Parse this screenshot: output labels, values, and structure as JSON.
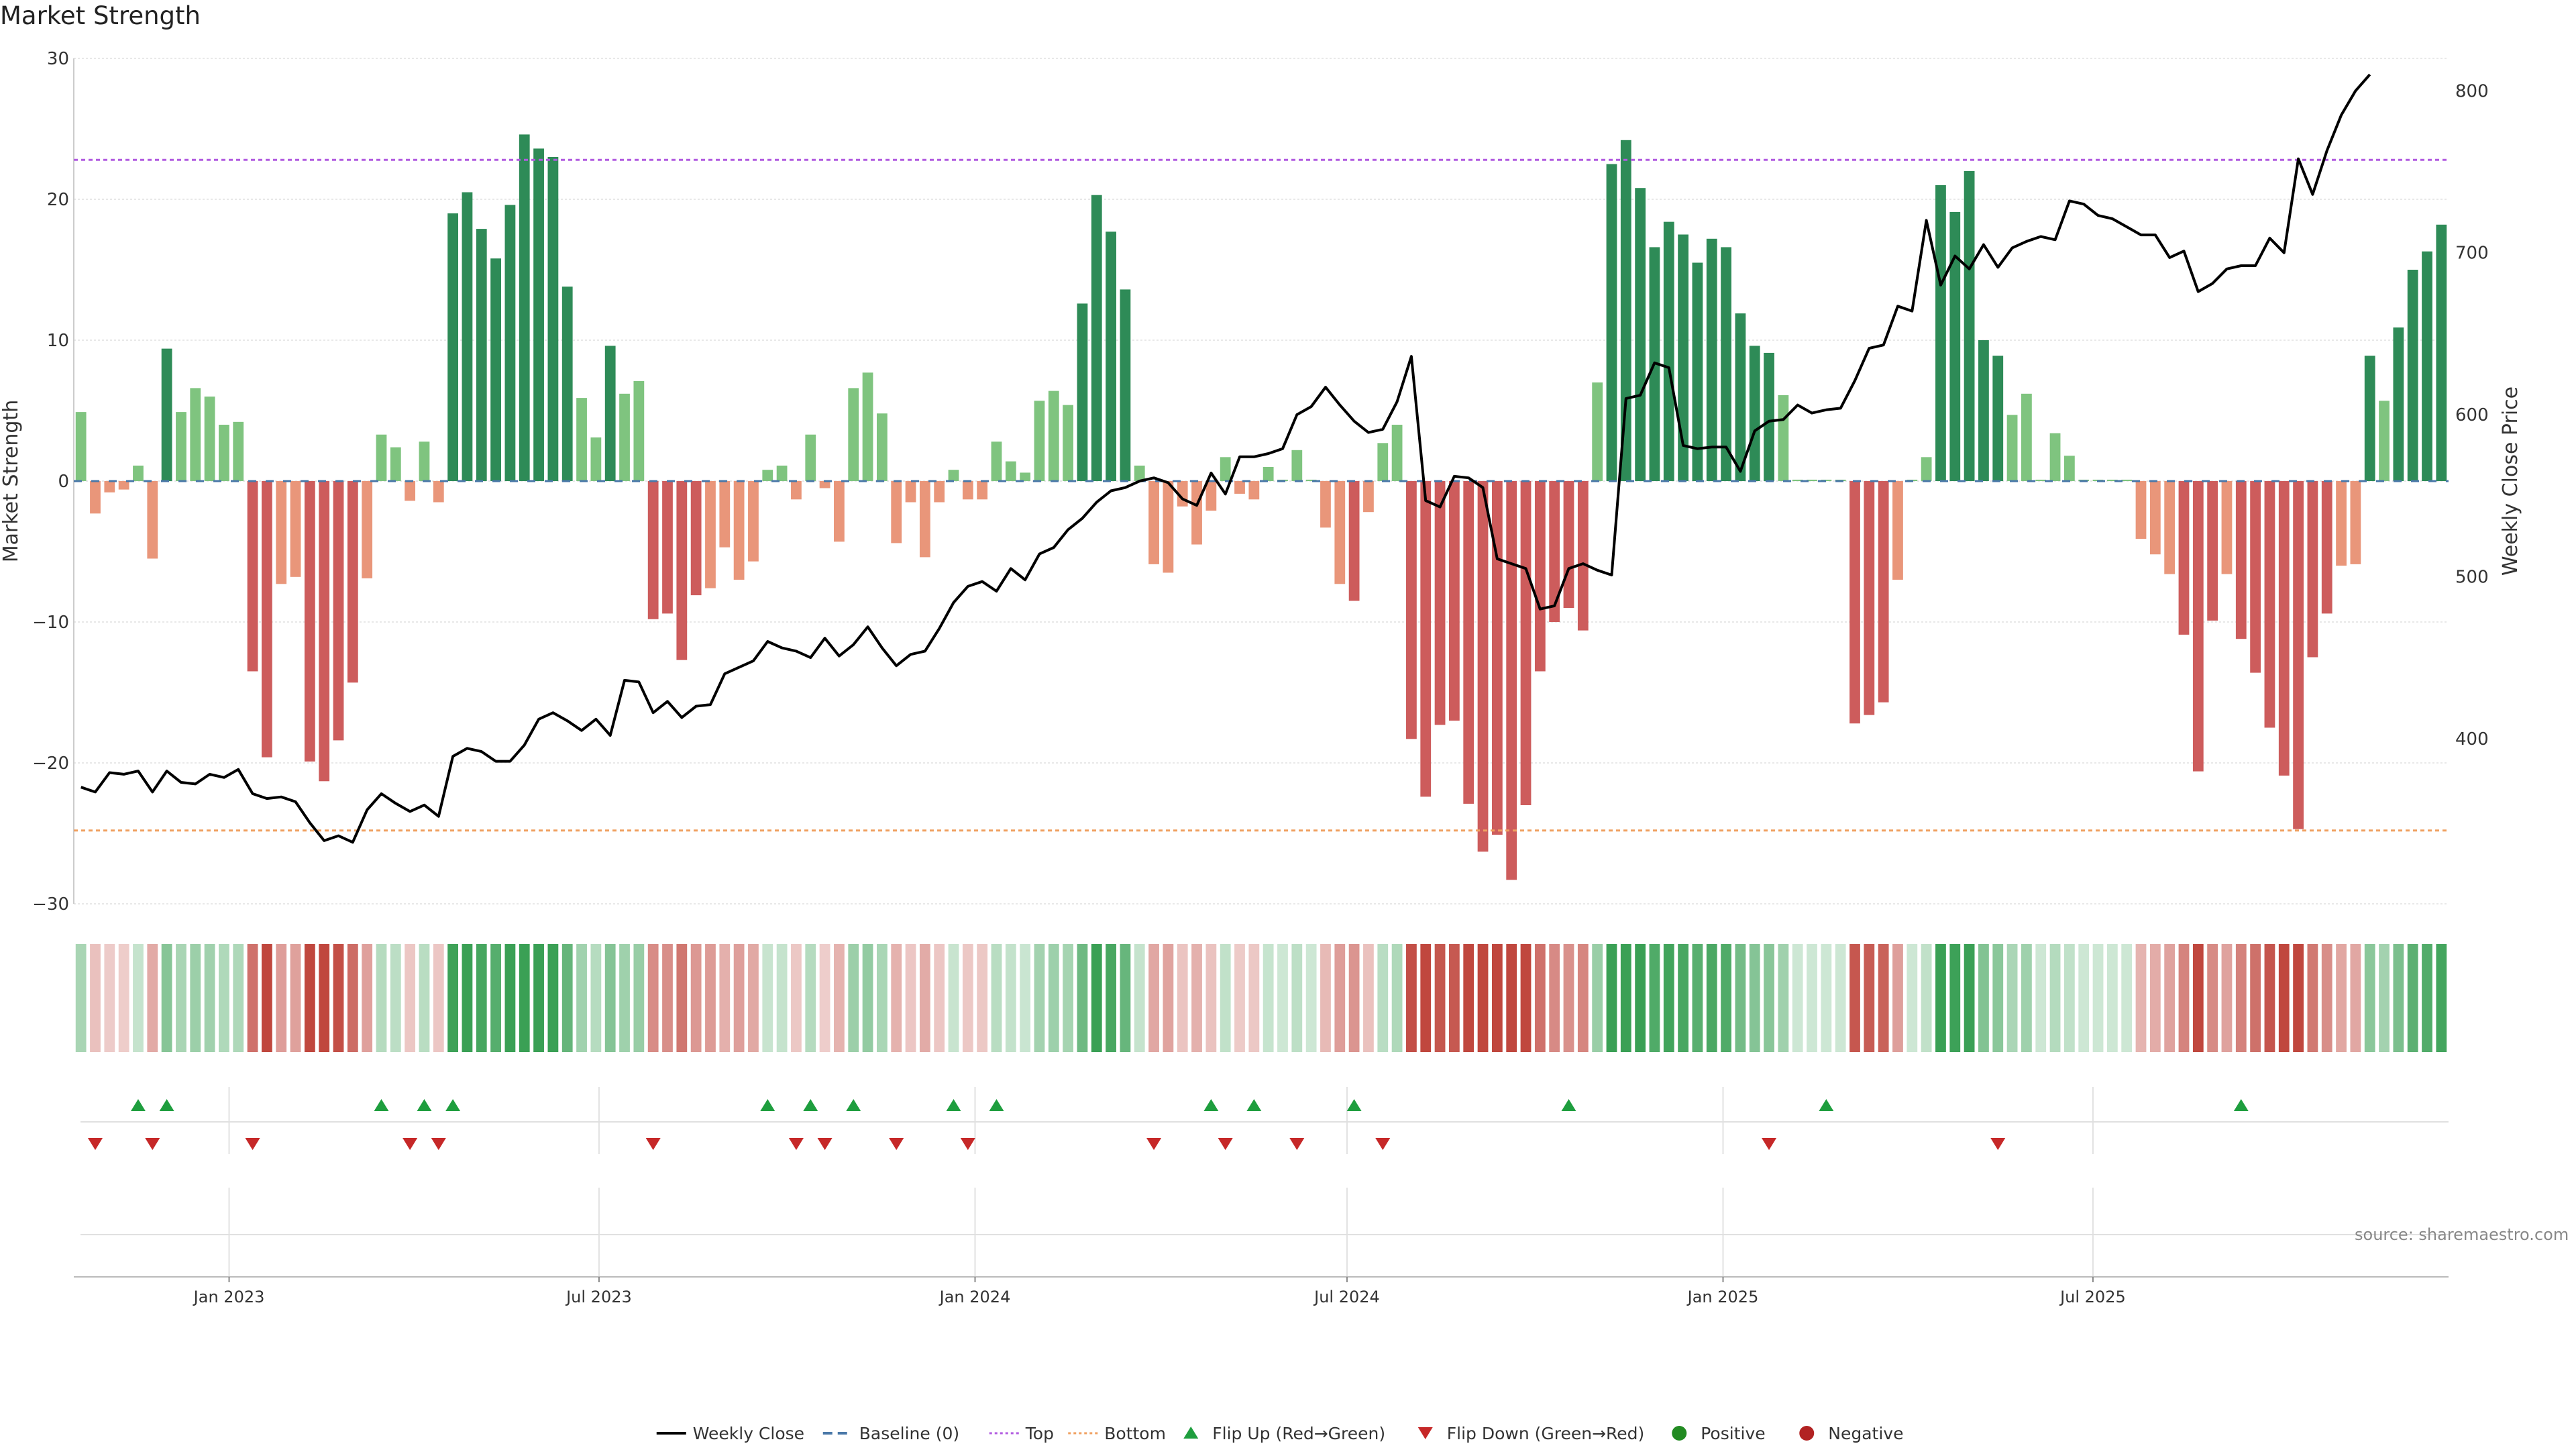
{
  "title": "Market Strength",
  "y_left_label": "Market Strength",
  "y_right_label": "Weekly Close Price",
  "source": "source: sharemaestro.com",
  "legend": [
    {
      "label": "Weekly Close",
      "kind": "line",
      "color": "#000000"
    },
    {
      "label": "Baseline (0)",
      "kind": "dash",
      "color": "#4a78a8"
    },
    {
      "label": "Top",
      "kind": "dot",
      "color": "#b15be0"
    },
    {
      "label": "Bottom",
      "kind": "dot",
      "color": "#f0a060"
    },
    {
      "label": "Flip Up (Red→Green)",
      "kind": "tri-up",
      "color": "#1e9e3e"
    },
    {
      "label": "Flip Down (Green→Red)",
      "kind": "tri-down",
      "color": "#c62828"
    },
    {
      "label": "Positive",
      "kind": "circle",
      "color": "#228b22"
    },
    {
      "label": "Negative",
      "kind": "circle",
      "color": "#b22222"
    }
  ],
  "colors": {
    "strong_green": "#2e8b57",
    "light_green": "#7fc47f",
    "strong_red": "#cd5c5c",
    "light_red": "#e9967a",
    "top_line": "#b15be0",
    "bottom_line": "#f0a060",
    "baseline": "#4a78a8",
    "price_line": "#000000"
  },
  "chart_data": {
    "type": "bar",
    "x_unit": "week",
    "x_start": "2022-10-17",
    "x_tick_labels": [
      "Jan 2023",
      "Jul 2023",
      "Jan 2024",
      "Jul 2024",
      "Jan 2025",
      "Jul 2025"
    ],
    "x_tick_dates": [
      "2023-01-01",
      "2023-07-01",
      "2024-01-01",
      "2024-07-01",
      "2025-01-01",
      "2025-07-01"
    ],
    "y_left_range": [
      -30,
      30
    ],
    "y_left_ticks": [
      -30,
      -20,
      -10,
      0,
      10,
      20,
      30
    ],
    "y_right_range": [
      298,
      820
    ],
    "y_right_ticks": [
      400,
      500,
      600,
      700,
      800
    ],
    "top_level": 22.8,
    "bottom_level": -24.8,
    "series": [
      {
        "name": "Market Strength",
        "values": [
          4.9,
          -2.3,
          -0.8,
          -0.6,
          1.1,
          -5.5,
          9.4,
          4.9,
          6.6,
          6.0,
          4.0,
          4.2,
          -13.5,
          -19.6,
          -7.3,
          -6.8,
          -19.9,
          -21.3,
          -18.4,
          -14.3,
          -6.9,
          3.3,
          2.4,
          -1.4,
          2.8,
          -1.5,
          19.0,
          20.5,
          17.9,
          15.8,
          19.6,
          24.6,
          23.6,
          23.0,
          13.8,
          5.9,
          3.1,
          9.6,
          6.2,
          7.1,
          -9.8,
          -9.4,
          -12.7,
          -8.1,
          -7.6,
          -4.7,
          -7.0,
          -5.7,
          0.8,
          1.1,
          -1.3,
          3.3,
          -0.5,
          -4.3,
          6.6,
          7.7,
          4.8,
          -4.4,
          -1.5,
          -5.4,
          -1.5,
          0.8,
          -1.3,
          -1.3,
          2.8,
          1.4,
          0.6,
          5.7,
          6.4,
          5.4,
          12.6,
          20.3,
          17.7,
          13.6,
          1.1,
          -5.9,
          -6.5,
          -1.8,
          -4.5,
          -2.1,
          1.7,
          -0.9,
          -1.3,
          1.0,
          0.1,
          2.2,
          0.1,
          -3.3,
          -7.3,
          -8.5,
          -2.2,
          2.7,
          4.0,
          -18.3,
          -22.4,
          -17.3,
          -17.0,
          -22.9,
          -26.3,
          -25.1,
          -28.3,
          -23.0,
          -13.5,
          -10.0,
          -9.0,
          -10.6,
          7.0,
          22.5,
          24.2,
          20.8,
          16.6,
          18.4,
          17.5,
          15.5,
          17.2,
          16.6,
          11.9,
          9.6,
          9.1,
          6.1,
          0.1,
          0.1,
          0.1,
          0.1,
          -17.2,
          -16.6,
          -15.7,
          -7.0,
          0.1,
          1.7,
          21.0,
          19.1,
          22.0,
          10.0,
          8.9,
          4.7,
          6.2,
          0.1,
          3.4,
          1.8,
          0.1,
          0.1,
          0.1,
          0.1,
          -4.1,
          -5.2,
          -6.6,
          -10.9,
          -20.6,
          -9.9,
          -6.6,
          -11.2,
          -13.6,
          -17.5,
          -20.9,
          -24.7,
          -12.5,
          -9.4,
          -6.0,
          -5.9,
          8.9,
          5.7,
          10.9,
          15.0,
          16.3,
          18.2
        ]
      },
      {
        "name": "Weekly Close",
        "values": [
          370,
          367,
          379,
          378,
          380,
          367,
          380,
          373,
          372,
          378,
          376,
          381,
          366,
          363,
          364,
          361,
          348,
          337,
          340,
          336,
          356,
          366,
          360,
          355,
          359,
          352,
          389,
          394,
          392,
          386,
          386,
          396,
          412,
          416,
          411,
          405,
          412,
          402,
          436,
          435,
          416,
          423,
          413,
          420,
          421,
          440,
          444,
          448,
          460,
          456,
          454,
          450,
          462,
          451,
          458,
          469,
          456,
          445,
          452,
          454,
          468,
          484,
          494,
          497,
          491,
          505,
          498,
          514,
          518,
          529,
          536,
          546,
          553,
          555,
          559,
          561,
          558,
          548,
          544,
          564,
          551,
          574,
          574,
          576,
          579,
          600,
          605,
          617,
          606,
          596,
          589,
          591,
          608,
          636,
          547,
          543,
          562,
          561,
          555,
          511,
          508,
          505,
          480,
          482,
          505,
          508,
          504,
          501,
          610,
          612,
          632,
          629,
          581,
          579,
          580,
          580,
          565,
          590,
          596,
          597,
          606,
          601,
          603,
          604,
          621,
          641,
          643,
          667,
          664,
          720,
          680,
          698,
          690,
          705,
          691,
          703,
          707,
          710,
          708,
          732,
          730,
          723,
          721,
          716,
          711,
          711,
          697,
          701,
          676,
          681,
          690,
          692,
          692,
          709,
          700,
          758,
          736,
          763,
          785,
          800,
          810
        ]
      }
    ],
    "flip_up_weeks": [
      4,
      6,
      21,
      24,
      26,
      48,
      51,
      54,
      61,
      64,
      79,
      82,
      89,
      104,
      122,
      151
    ],
    "flip_down_weeks": [
      1,
      5,
      12,
      23,
      25,
      40,
      50,
      52,
      57,
      62,
      75,
      80,
      85,
      91,
      118,
      134
    ]
  }
}
